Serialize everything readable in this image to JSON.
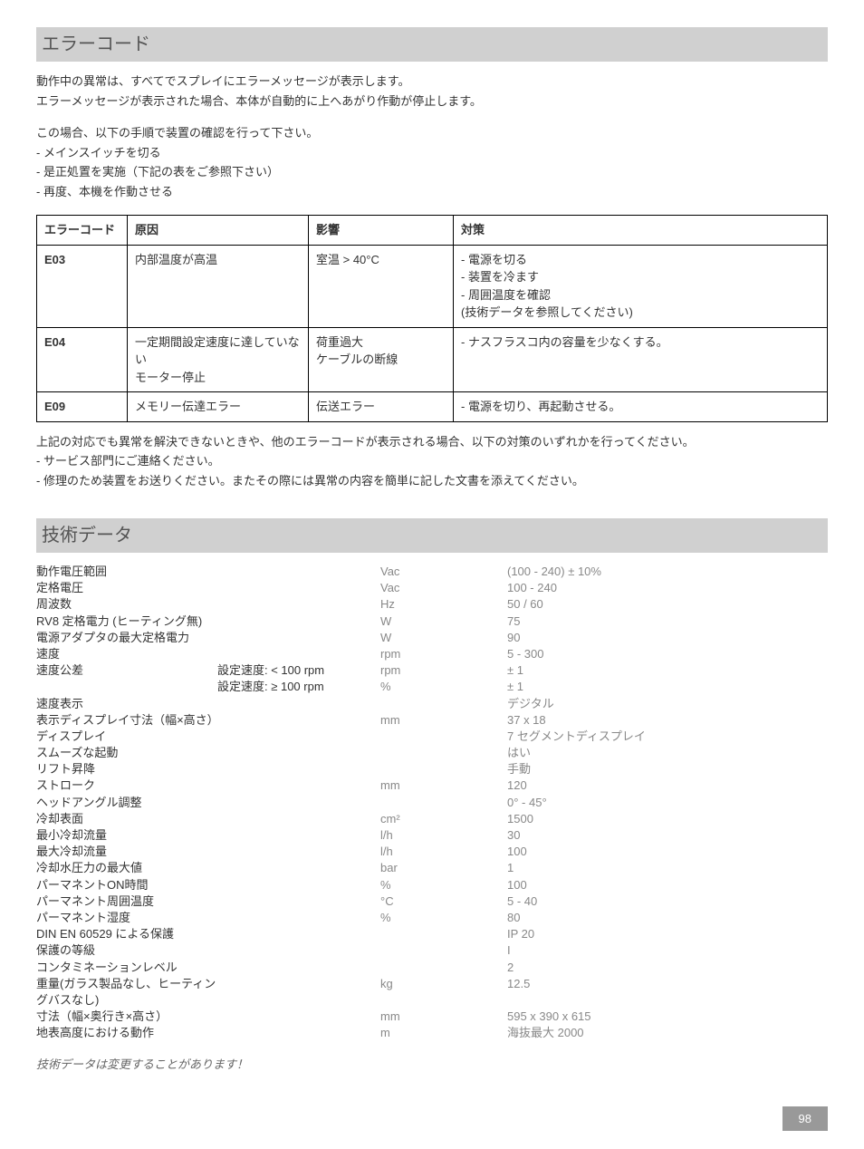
{
  "section1": {
    "title": "エラーコード",
    "intro1": "動作中の異常は、すべてでスプレイにエラーメッセージが表示します。",
    "intro2": "エラーメッセージが表示された場合、本体が自動的に上へあがり作動が停止します。",
    "step_intro": "この場合、以下の手順で装置の確認を行って下さい。",
    "step1": "- メインスイッチを切る",
    "step2": "- 是正処置を実施（下記の表をご参照下さい）",
    "step3": "- 再度、本機を作動させる"
  },
  "error_table": {
    "headers": {
      "code": "エラーコード",
      "cause": "原因",
      "effect": "影響",
      "solution": "対策"
    },
    "rows": [
      {
        "code": "E03",
        "cause": "内部温度が高温",
        "effect": "室温 > 40°C",
        "solution": "- 電源を切る\n- 装置を冷ます\n- 周囲温度を確認\n(技術データを参照してください)"
      },
      {
        "code": "E04",
        "cause": "一定期間設定速度に達していない\nモーター停止",
        "effect": "荷重過大\nケーブルの断線",
        "solution": "- ナスフラスコ内の容量を少なくする。"
      },
      {
        "code": "E09",
        "cause": "メモリー伝達エラー",
        "effect": "伝送エラー",
        "solution": "- 電源を切り、再起動させる。"
      }
    ]
  },
  "notes": {
    "note1": "上記の対応でも異常を解決できないときや、他のエラーコードが表示される場合、以下の対策のいずれかを行ってください。",
    "note2": "- サービス部門にご連絡ください。",
    "note3": "- 修理のため装置をお送りください。またその際には異常の内容を簡単に記した文書を添えてください。"
  },
  "section2": {
    "title": "技術データ"
  },
  "specs": [
    {
      "label": "動作電圧範囲",
      "sublabel": "",
      "unit": "Vac",
      "value": "(100 - 240) ± 10%"
    },
    {
      "label": "定格電圧",
      "sublabel": "",
      "unit": "Vac",
      "value": "100 - 240"
    },
    {
      "label": "周波数",
      "sublabel": "",
      "unit": "Hz",
      "value": "50 / 60"
    },
    {
      "label": "RV8 定格電力 (ヒーティング無)",
      "sublabel": "",
      "unit": "W",
      "value": "75"
    },
    {
      "label": "電源アダプタの最大定格電力",
      "sublabel": "",
      "unit": "W",
      "value": "90"
    },
    {
      "label": "速度",
      "sublabel": "",
      "unit": "rpm",
      "value": "5 - 300"
    },
    {
      "label": "速度公差",
      "sublabel": "設定速度: < 100 rpm",
      "unit": "rpm",
      "value": "± 1"
    },
    {
      "label": "",
      "sublabel": "設定速度: ≥ 100 rpm",
      "unit": "%",
      "value": "± 1"
    },
    {
      "label": "速度表示",
      "sublabel": "",
      "unit": "",
      "value": "デジタル"
    },
    {
      "label": "表示ディスプレイ寸法（幅×高さ）",
      "sublabel": "",
      "unit": "mm",
      "value": "37 x 18"
    },
    {
      "label": "ディスプレイ",
      "sublabel": "",
      "unit": "",
      "value": "7 セグメントディスプレイ"
    },
    {
      "label": "スムーズな起動",
      "sublabel": "",
      "unit": "",
      "value": "はい"
    },
    {
      "label": "リフト昇降",
      "sublabel": "",
      "unit": "",
      "value": "手動"
    },
    {
      "label": "ストローク",
      "sublabel": "",
      "unit": "mm",
      "value": "120"
    },
    {
      "label": "ヘッドアングル調整",
      "sublabel": "",
      "unit": "",
      "value": "0° - 45°"
    },
    {
      "label": "冷却表面",
      "sublabel": "",
      "unit": "cm²",
      "value": "1500"
    },
    {
      "label": "最小冷却流量",
      "sublabel": "",
      "unit": "l/h",
      "value": "30"
    },
    {
      "label": "最大冷却流量",
      "sublabel": "",
      "unit": "l/h",
      "value": "100"
    },
    {
      "label": "冷却水圧力の最大値",
      "sublabel": "",
      "unit": "bar",
      "value": "1"
    },
    {
      "label": "パーマネントON時間",
      "sublabel": "",
      "unit": "%",
      "value": "100"
    },
    {
      "label": "パーマネント周囲温度",
      "sublabel": "",
      "unit": "°C",
      "value": "5 - 40"
    },
    {
      "label": "パーマネント湿度",
      "sublabel": "",
      "unit": "%",
      "value": "80"
    },
    {
      "label": "DIN EN 60529 による保護",
      "sublabel": "",
      "unit": "",
      "value": "IP 20"
    },
    {
      "label": "保護の等級",
      "sublabel": "",
      "unit": "",
      "value": "I"
    },
    {
      "label": "コンタミネーションレベル",
      "sublabel": "",
      "unit": "",
      "value": "2"
    },
    {
      "label": "重量(ガラス製品なし、ヒーティングバスなし)",
      "sublabel": "",
      "unit": "kg",
      "value": "12.5"
    },
    {
      "label": "寸法（幅×奥行き×高さ）",
      "sublabel": "",
      "unit": "mm",
      "value": "595 x 390 x 615"
    },
    {
      "label": "地表高度における動作",
      "sublabel": "",
      "unit": "m",
      "value": "海抜最大 2000"
    }
  ],
  "disclaimer": "技術データは変更することがあります！",
  "page_number": "98"
}
